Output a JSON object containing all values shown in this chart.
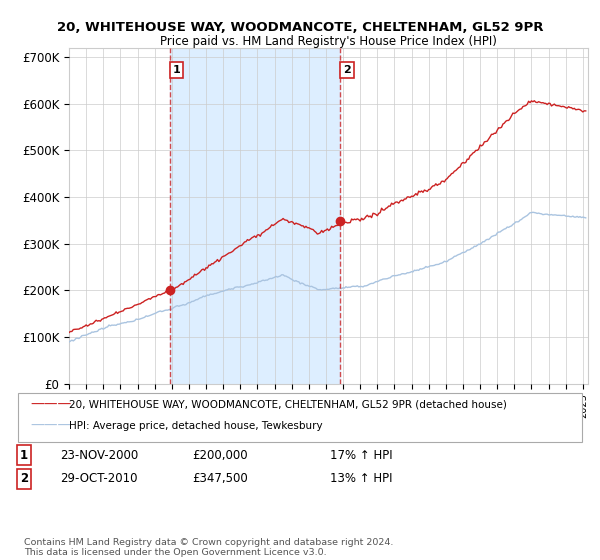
{
  "title": "20, WHITEHOUSE WAY, WOODMANCOTE, CHELTENHAM, GL52 9PR",
  "subtitle": "Price paid vs. HM Land Registry's House Price Index (HPI)",
  "ylim": [
    0,
    720000
  ],
  "yticks": [
    0,
    100000,
    200000,
    300000,
    400000,
    500000,
    600000,
    700000
  ],
  "ytick_labels": [
    "£0",
    "£100K",
    "£200K",
    "£300K",
    "£400K",
    "£500K",
    "£600K",
    "£700K"
  ],
  "hpi_color": "#aac4e0",
  "price_color": "#cc2222",
  "shade_color": "#ddeeff",
  "sale1_year": 2000.9,
  "sale1_price": 200000,
  "sale2_year": 2010.83,
  "sale2_price": 347500,
  "legend_price_label": "20, WHITEHOUSE WAY, WOODMANCOTE, CHELTENHAM, GL52 9PR (detached house)",
  "legend_hpi_label": "HPI: Average price, detached house, Tewkesbury",
  "table_rows": [
    [
      "1",
      "23-NOV-2000",
      "£200,000",
      "17% ↑ HPI"
    ],
    [
      "2",
      "29-OCT-2010",
      "£347,500",
      "13% ↑ HPI"
    ]
  ],
  "footer": "Contains HM Land Registry data © Crown copyright and database right 2024.\nThis data is licensed under the Open Government Licence v3.0.",
  "background_color": "#ffffff",
  "grid_color": "#cccccc"
}
